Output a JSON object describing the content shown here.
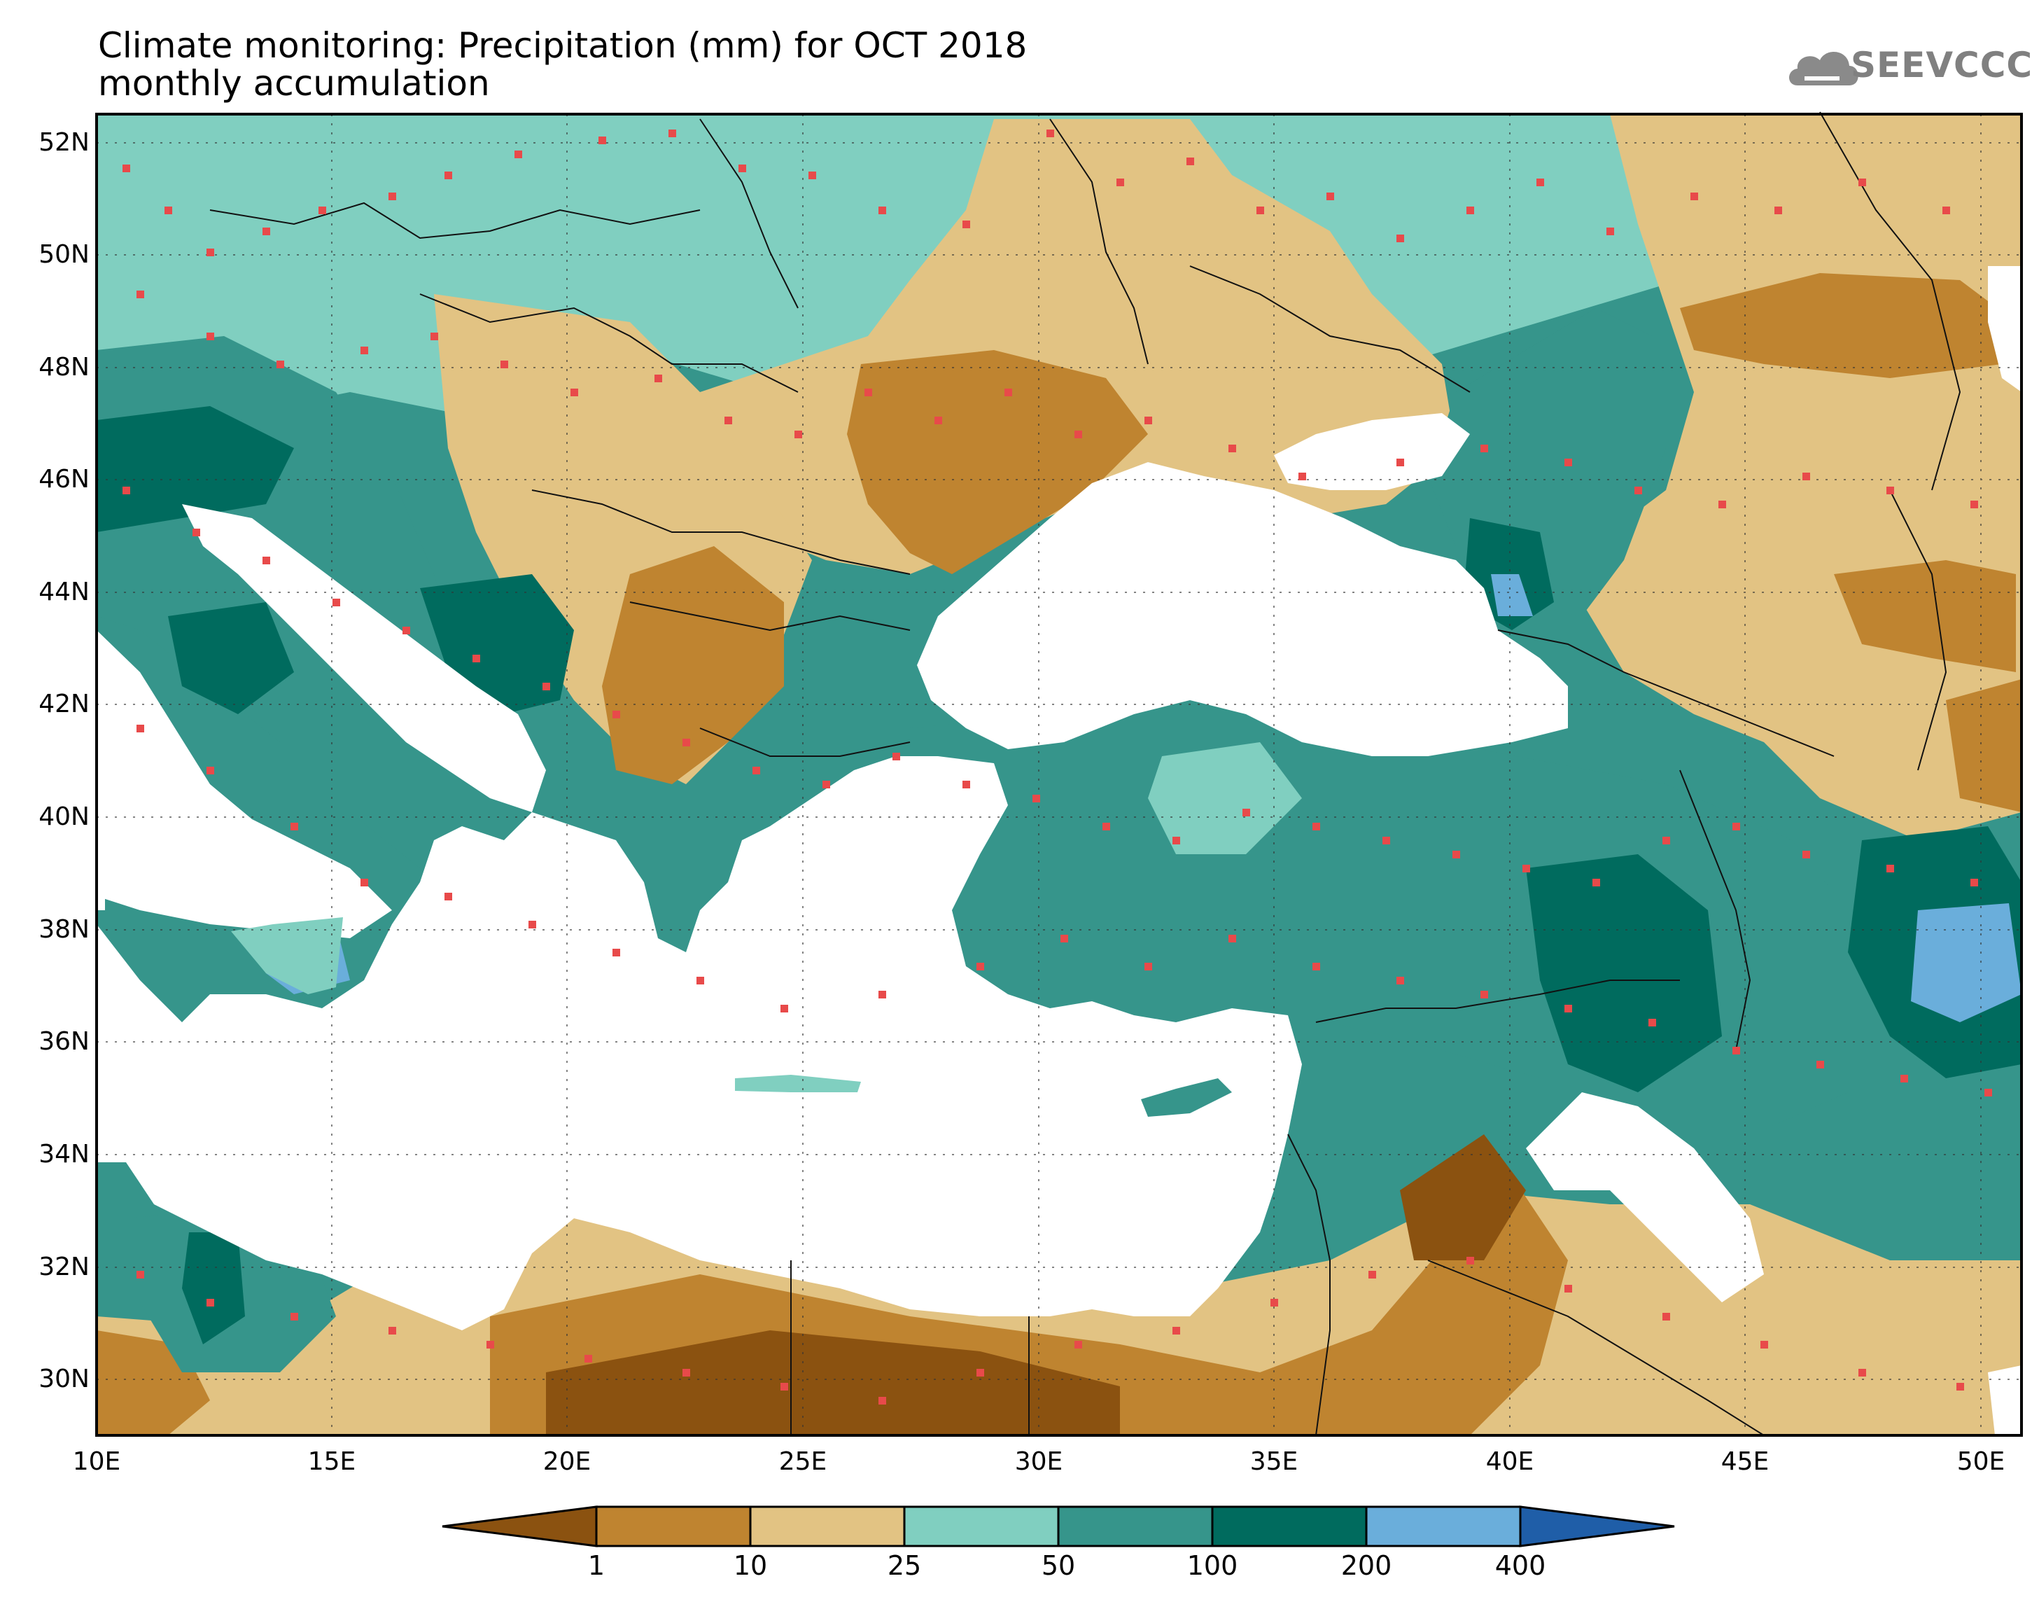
{
  "header": {
    "title_line1": "Climate monitoring: Precipitation (mm) for OCT 2018",
    "title_line2": "monthly accumulation",
    "logo_text": "SEEVCCC",
    "logo_icon": "cloud-icon"
  },
  "map": {
    "lat_labels": [
      "52N",
      "50N",
      "48N",
      "46N",
      "44N",
      "42N",
      "40N",
      "38N",
      "36N",
      "34N",
      "32N",
      "30N"
    ],
    "lon_labels": [
      "10E",
      "15E",
      "20E",
      "25E",
      "30E",
      "35E",
      "40E",
      "45E",
      "50E"
    ],
    "sea_color": "#ffffff",
    "station_color": "#e84a4a"
  },
  "colorbar": {
    "levels": [
      "1",
      "10",
      "25",
      "50",
      "100",
      "200",
      "400"
    ],
    "colors": [
      "#8b5210",
      "#bf8430",
      "#e2c383",
      "#80cfc0",
      "#36958b",
      "#006b5e",
      "#6aaedb",
      "#1f5ea8"
    ]
  }
}
